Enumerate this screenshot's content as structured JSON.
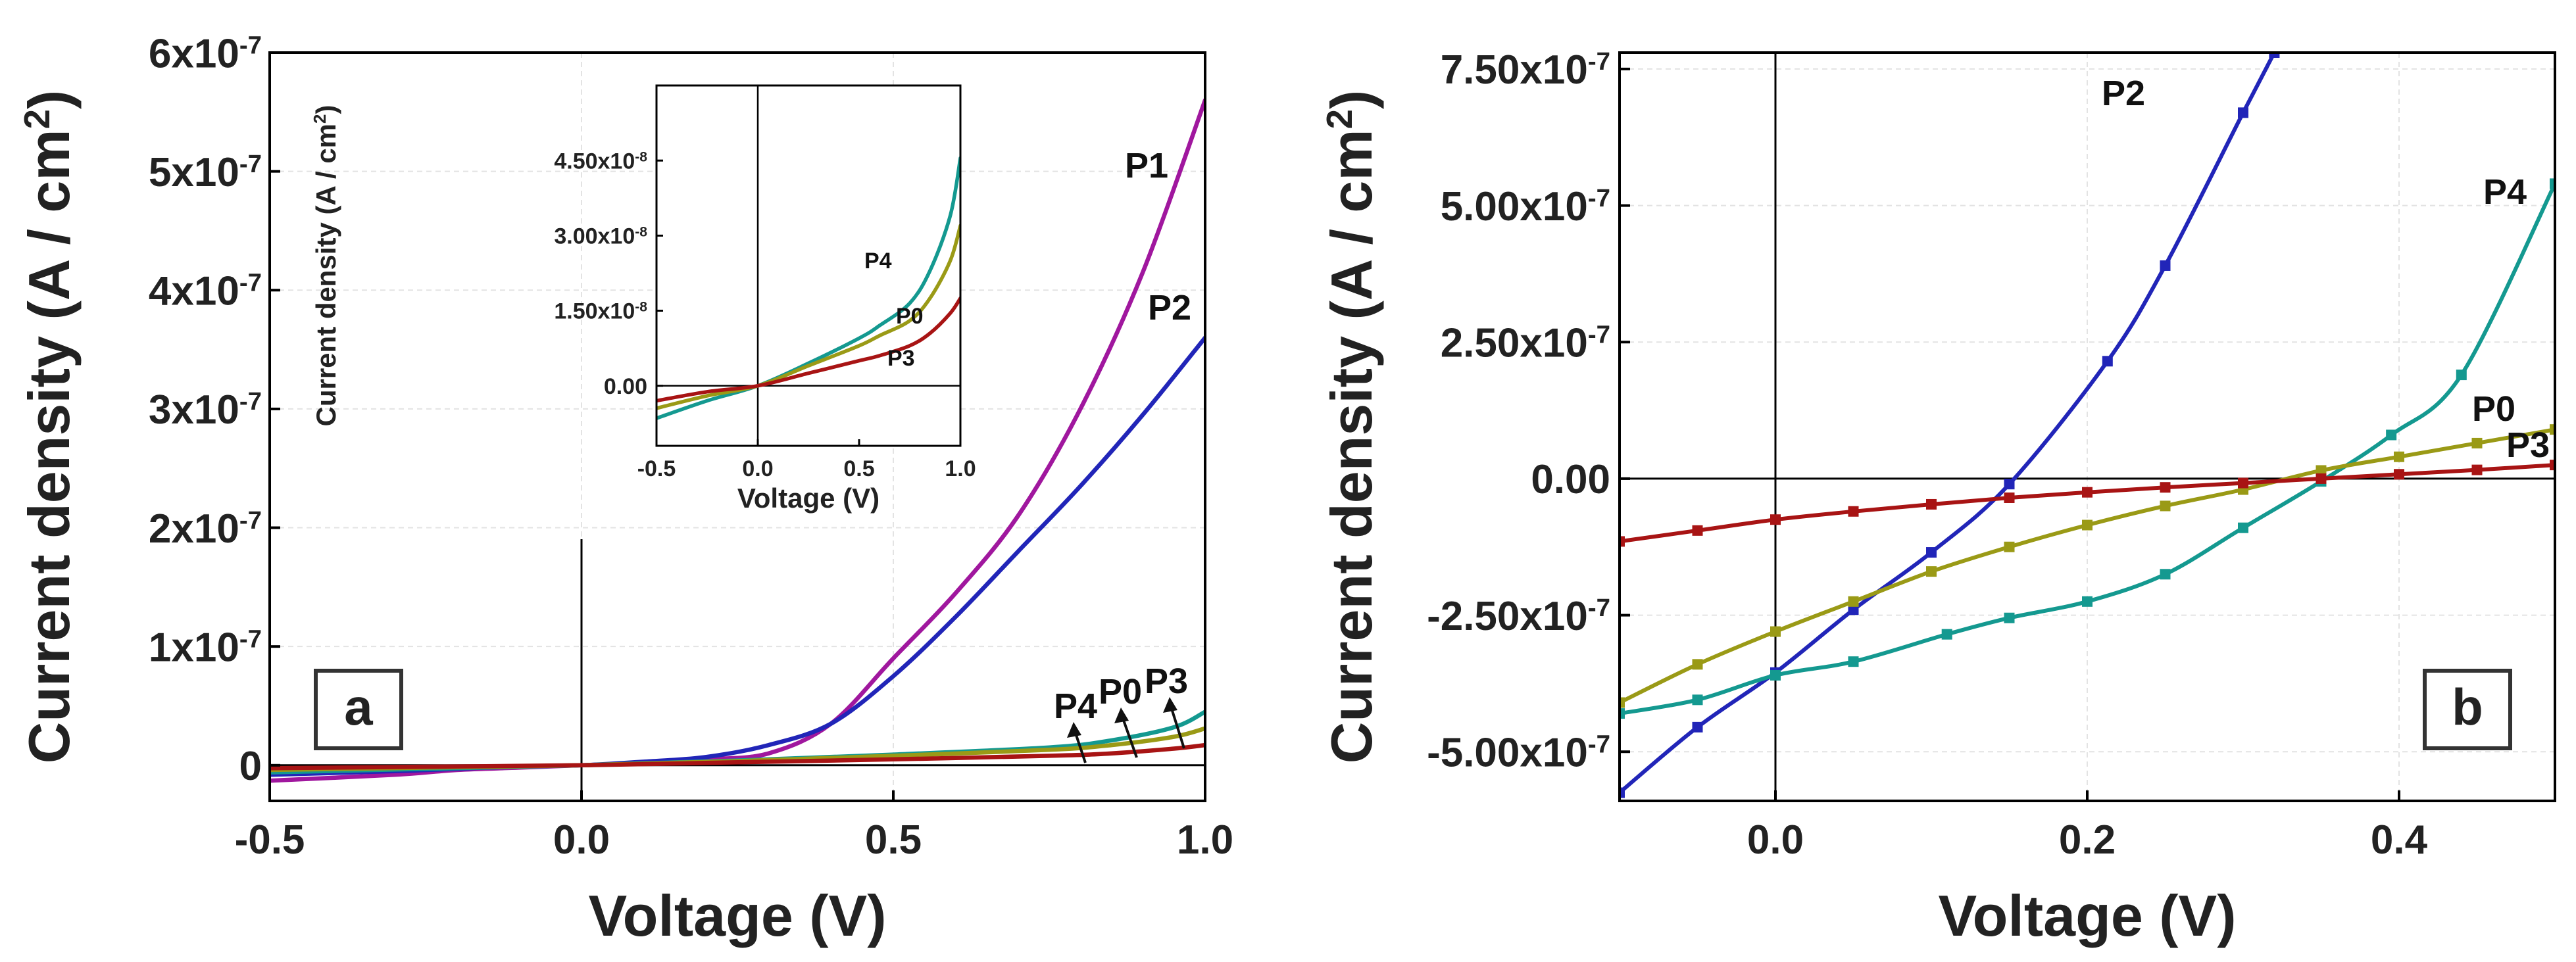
{
  "chart_data": [
    {
      "id": "a",
      "type": "line",
      "panel_label": "a",
      "xlabel": "Voltage  (V)",
      "ylabel": "Current  density  (A / cm",
      "ylabel_sup": "2",
      "ylabel_end": ")",
      "xlim": [
        -0.5,
        1.0
      ],
      "ylim": [
        -3e-08,
        6e-07
      ],
      "grid": true,
      "xticks": [
        {
          "value": -0.5,
          "label": "-0.5"
        },
        {
          "value": 0.0,
          "label": "0.0"
        },
        {
          "value": 0.5,
          "label": "0.5"
        },
        {
          "value": 1.0,
          "label": "1.0"
        }
      ],
      "yticks": [
        {
          "value": 0,
          "label": "0"
        },
        {
          "value": 1e-07,
          "label": "1x10",
          "exp": "-7"
        },
        {
          "value": 2e-07,
          "label": "2x10",
          "exp": "-7"
        },
        {
          "value": 3e-07,
          "label": "3x10",
          "exp": "-7"
        },
        {
          "value": 4e-07,
          "label": "4x10",
          "exp": "-7"
        },
        {
          "value": 5e-07,
          "label": "5x10",
          "exp": "-7"
        },
        {
          "value": 6e-07,
          "label": "6x10",
          "exp": "-7"
        }
      ],
      "series": [
        {
          "name": "P1",
          "color": "#a0179e",
          "x": [
            -0.5,
            -0.3,
            -0.2,
            -0.1,
            0.0,
            0.1,
            0.2,
            0.3,
            0.4,
            0.5,
            0.6,
            0.7,
            0.8,
            0.9,
            1.0
          ],
          "y": [
            -1.3e-08,
            -8e-09,
            -4e-09,
            -2e-09,
            0.0,
            2e-09,
            5e-09,
            1e-08,
            3.5e-08,
            9e-08,
            1.45e-07,
            2.1e-07,
            3e-07,
            4.15e-07,
            5.6e-07
          ]
        },
        {
          "name": "P2",
          "color": "#2125b8",
          "x": [
            -0.5,
            -0.3,
            -0.2,
            -0.1,
            0.0,
            0.1,
            0.2,
            0.3,
            0.4,
            0.5,
            0.6,
            0.7,
            0.8,
            0.9,
            1.0
          ],
          "y": [
            -8e-09,
            -5e-09,
            -3e-09,
            -1e-09,
            0.0,
            3e-09,
            7e-09,
            1.7e-08,
            3.5e-08,
            7.5e-08,
            1.25e-07,
            1.8e-07,
            2.35e-07,
            2.95e-07,
            3.6e-07
          ]
        },
        {
          "name": "P4",
          "color": "#149990",
          "x": [
            -0.5,
            -0.25,
            0.0,
            0.25,
            0.5,
            0.75,
            0.85,
            0.95,
            1.0
          ],
          "y": [
            -6e-09,
            -3e-09,
            0.0,
            4e-09,
            9e-09,
            1.5e-08,
            2.1e-08,
            3.2e-08,
            4.5e-08
          ]
        },
        {
          "name": "P0",
          "color": "#9a9a16",
          "x": [
            -0.5,
            -0.25,
            0.0,
            0.25,
            0.5,
            0.75,
            0.85,
            0.95,
            1.0
          ],
          "y": [
            -4e-09,
            -2e-09,
            0.0,
            3.5e-09,
            8e-09,
            1.3e-08,
            1.7e-08,
            2.4e-08,
            3.1e-08
          ]
        },
        {
          "name": "P3",
          "color": "#a81414",
          "x": [
            -0.5,
            -0.25,
            0.0,
            0.25,
            0.5,
            0.75,
            0.85,
            0.95,
            1.0
          ],
          "y": [
            -2.5e-09,
            -1.2e-09,
            0.0,
            2.5e-09,
            5e-09,
            8e-09,
            1e-08,
            1.4e-08,
            1.7e-08
          ]
        }
      ],
      "inset": {
        "type": "line",
        "xlabel": "Voltage  (V)",
        "ylabel": "Current  density  (A / cm",
        "ylabel_sup": "2",
        "ylabel_end": ")",
        "xlim": [
          -0.5,
          1.0
        ],
        "ylim": [
          -1.2e-08,
          6e-08
        ],
        "xticks": [
          {
            "value": -0.5,
            "label": "-0.5"
          },
          {
            "value": 0.0,
            "label": "0.0"
          },
          {
            "value": 0.5,
            "label": "0.5"
          },
          {
            "value": 1.0,
            "label": "1.0"
          }
        ],
        "yticks": [
          {
            "value": 0,
            "label": "0.00"
          },
          {
            "value": 1.5e-08,
            "label": "1.50x10",
            "exp": "-8"
          },
          {
            "value": 3e-08,
            "label": "3.00x10",
            "exp": "-8"
          },
          {
            "value": 4.5e-08,
            "label": "4.50x10",
            "exp": "-8"
          }
        ],
        "series": [
          {
            "name": "P4",
            "color": "#149990",
            "x": [
              -0.5,
              -0.25,
              0.0,
              0.25,
              0.5,
              0.6,
              0.75,
              0.85,
              0.95,
              1.0
            ],
            "y": [
              -6.5e-09,
              -3e-09,
              0.0,
              4.5e-09,
              9.5e-09,
              1.2e-08,
              1.65e-08,
              2.3e-08,
              3.4e-08,
              4.55e-08
            ]
          },
          {
            "name": "P0",
            "color": "#9a9a16",
            "x": [
              -0.5,
              -0.25,
              0.0,
              0.25,
              0.5,
              0.6,
              0.75,
              0.85,
              0.95,
              1.0
            ],
            "y": [
              -4.5e-09,
              -2e-09,
              0.0,
              4e-09,
              8e-09,
              1e-08,
              1.3e-08,
              1.75e-08,
              2.5e-08,
              3.2e-08
            ]
          },
          {
            "name": "P3",
            "color": "#a81414",
            "x": [
              -0.5,
              -0.25,
              0.0,
              0.25,
              0.5,
              0.6,
              0.75,
              0.85,
              0.95,
              1.0
            ],
            "y": [
              -3e-09,
              -1.2e-09,
              0.0,
              2.5e-09,
              5e-09,
              6e-09,
              8e-09,
              1.05e-08,
              1.45e-08,
              1.75e-08
            ]
          }
        ]
      },
      "annotations": [
        "P4",
        "P0",
        "P3"
      ]
    },
    {
      "id": "b",
      "type": "line",
      "panel_label": "b",
      "xlabel": "Voltage  (V)",
      "ylabel": "Current  density  (A / cm",
      "ylabel_sup": "2",
      "ylabel_end": ")",
      "xlim": [
        -0.1,
        0.5
      ],
      "ylim": [
        -5.9e-07,
        7.8e-07
      ],
      "grid": true,
      "xticks": [
        {
          "value": 0.0,
          "label": "0.0"
        },
        {
          "value": 0.2,
          "label": "0.2"
        },
        {
          "value": 0.4,
          "label": "0.4"
        }
      ],
      "yticks": [
        {
          "value": -5e-07,
          "label": "-5.00x10",
          "exp": "-7"
        },
        {
          "value": -2.5e-07,
          "label": "-2.50x10",
          "exp": "-7"
        },
        {
          "value": 0,
          "label": "0.00"
        },
        {
          "value": 2.5e-07,
          "label": "2.50x10",
          "exp": "-7"
        },
        {
          "value": 5e-07,
          "label": "5.00x10",
          "exp": "-7"
        },
        {
          "value": 7.5e-07,
          "label": "7.50x10",
          "exp": "-7"
        }
      ],
      "series": [
        {
          "name": "P2",
          "color": "#2125b8",
          "x": [
            -0.1,
            -0.05,
            0.0,
            0.05,
            0.1,
            0.15,
            0.213,
            0.25,
            0.3,
            0.32
          ],
          "y": [
            -5.75e-07,
            -4.55e-07,
            -3.55e-07,
            -2.4e-07,
            -1.35e-07,
            -1e-08,
            2.15e-07,
            3.9e-07,
            6.7e-07,
            7.8e-07
          ]
        },
        {
          "name": "P4",
          "color": "#149990",
          "x": [
            -0.1,
            -0.05,
            0.0,
            0.05,
            0.11,
            0.15,
            0.2,
            0.25,
            0.3,
            0.35,
            0.395,
            0.44,
            0.5
          ],
          "y": [
            -4.3e-07,
            -4.05e-07,
            -3.6e-07,
            -3.35e-07,
            -2.85e-07,
            -2.55e-07,
            -2.25e-07,
            -1.75e-07,
            -9e-08,
            -5e-09,
            8e-08,
            1.9e-07,
            5.4e-07
          ]
        },
        {
          "name": "P0",
          "color": "#9a9a16",
          "x": [
            -0.1,
            -0.05,
            0.0,
            0.05,
            0.1,
            0.15,
            0.2,
            0.25,
            0.3,
            0.35,
            0.4,
            0.45,
            0.5
          ],
          "y": [
            -4.1e-07,
            -3.4e-07,
            -2.8e-07,
            -2.25e-07,
            -1.7e-07,
            -1.25e-07,
            -8.5e-08,
            -5e-08,
            -2e-08,
            1.5e-08,
            4e-08,
            6.5e-08,
            9e-08
          ]
        },
        {
          "name": "P3",
          "color": "#a81414",
          "x": [
            -0.1,
            -0.05,
            0.0,
            0.05,
            0.1,
            0.15,
            0.2,
            0.25,
            0.3,
            0.35,
            0.4,
            0.45,
            0.5
          ],
          "y": [
            -1.15e-07,
            -9.5e-08,
            -7.5e-08,
            -6e-08,
            -4.7e-08,
            -3.5e-08,
            -2.5e-08,
            -1.6e-08,
            -8e-09,
            0.0,
            8e-09,
            1.6e-08,
            2.5e-08
          ]
        }
      ]
    }
  ]
}
